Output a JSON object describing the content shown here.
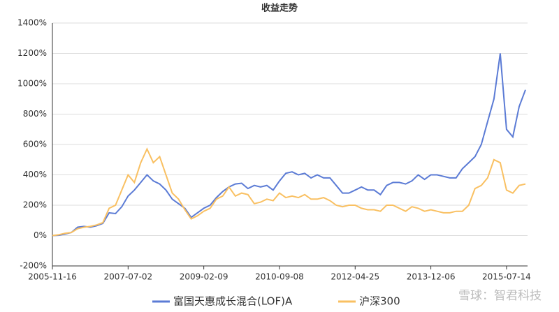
{
  "chart_data": {
    "type": "line",
    "title": "收益走势",
    "categories": [
      "2005-11-16",
      null,
      null,
      null,
      null,
      null,
      null,
      null,
      null,
      null,
      null,
      null,
      "2007-07-02",
      null,
      null,
      null,
      null,
      null,
      null,
      null,
      null,
      null,
      null,
      null,
      "2009-02-09",
      null,
      null,
      null,
      null,
      null,
      null,
      null,
      null,
      null,
      null,
      null,
      "2010-09-08",
      null,
      null,
      null,
      null,
      null,
      null,
      null,
      null,
      null,
      null,
      null,
      "2012-04-25",
      null,
      null,
      null,
      null,
      null,
      null,
      null,
      null,
      null,
      null,
      null,
      "2013-12-06",
      null,
      null,
      null,
      null,
      null,
      null,
      null,
      null,
      null,
      null,
      null,
      "2015-07-14",
      null,
      null,
      null
    ],
    "series": [
      {
        "name": "富国天惠成长混合(LOF)A",
        "color": "#5b7bd5",
        "values": [
          0,
          2,
          10,
          20,
          55,
          60,
          55,
          65,
          80,
          150,
          145,
          190,
          260,
          300,
          350,
          400,
          360,
          340,
          300,
          240,
          210,
          180,
          120,
          150,
          180,
          200,
          250,
          290,
          320,
          340,
          345,
          310,
          330,
          320,
          330,
          300,
          360,
          410,
          420,
          400,
          410,
          380,
          400,
          380,
          380,
          330,
          280,
          280,
          300,
          320,
          300,
          300,
          270,
          330,
          350,
          350,
          340,
          360,
          400,
          370,
          400,
          400,
          390,
          380,
          380,
          440,
          480,
          520,
          600,
          750,
          900,
          1200,
          700,
          650,
          850,
          960
        ]
      },
      {
        "name": "沪深300",
        "color": "#f9c062",
        "values": [
          0,
          5,
          15,
          20,
          45,
          55,
          60,
          70,
          85,
          180,
          200,
          300,
          400,
          350,
          480,
          570,
          480,
          520,
          400,
          280,
          240,
          170,
          110,
          130,
          160,
          180,
          240,
          260,
          320,
          260,
          280,
          270,
          210,
          220,
          240,
          230,
          280,
          250,
          260,
          250,
          270,
          240,
          240,
          250,
          230,
          200,
          190,
          200,
          200,
          180,
          170,
          170,
          160,
          200,
          200,
          180,
          160,
          190,
          180,
          160,
          170,
          160,
          150,
          150,
          160,
          160,
          200,
          310,
          330,
          380,
          500,
          480,
          300,
          280,
          330,
          340
        ]
      }
    ],
    "ylim": [
      -200,
      1400
    ],
    "yticks": [
      {
        "value": -200,
        "label": "-200%"
      },
      {
        "value": 0,
        "label": "0%"
      },
      {
        "value": 200,
        "label": "200%"
      },
      {
        "value": 400,
        "label": "400%"
      },
      {
        "value": 600,
        "label": "600%"
      },
      {
        "value": 800,
        "label": "800%"
      },
      {
        "value": 1000,
        "label": "1000%"
      },
      {
        "value": 1200,
        "label": "1200%"
      },
      {
        "value": 1400,
        "label": "1400%"
      }
    ],
    "grid": true,
    "legend": "bottom",
    "watermark": "雪球：智君科技"
  }
}
